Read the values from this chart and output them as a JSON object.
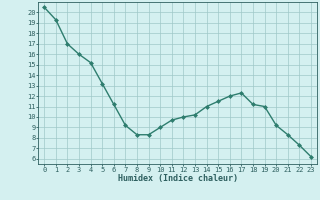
{
  "x": [
    0,
    1,
    2,
    3,
    4,
    5,
    6,
    7,
    8,
    9,
    10,
    11,
    12,
    13,
    14,
    15,
    16,
    17,
    18,
    19,
    20,
    21,
    22,
    23
  ],
  "y": [
    20.5,
    19.3,
    17.0,
    16.0,
    15.2,
    13.2,
    11.2,
    9.2,
    8.3,
    8.3,
    9.0,
    9.7,
    10.0,
    10.2,
    11.0,
    11.5,
    12.0,
    12.3,
    11.2,
    11.0,
    9.2,
    8.3,
    7.3,
    6.2
  ],
  "line_color": "#2e7d6e",
  "marker": "D",
  "marker_size": 2.0,
  "line_width": 1.0,
  "bg_color": "#d4f0f0",
  "grid_color": "#a0c8c8",
  "tick_color": "#2e6060",
  "xlabel": "Humidex (Indice chaleur)",
  "xlabel_fontsize": 6.0,
  "ylabel_ticks": [
    6,
    7,
    8,
    9,
    10,
    11,
    12,
    13,
    14,
    15,
    16,
    17,
    18,
    19,
    20
  ],
  "ylim": [
    5.5,
    21.0
  ],
  "xlim": [
    -0.5,
    23.5
  ],
  "xticks": [
    0,
    1,
    2,
    3,
    4,
    5,
    6,
    7,
    8,
    9,
    10,
    11,
    12,
    13,
    14,
    15,
    16,
    17,
    18,
    19,
    20,
    21,
    22,
    23
  ],
  "tick_fontsize": 5.0
}
